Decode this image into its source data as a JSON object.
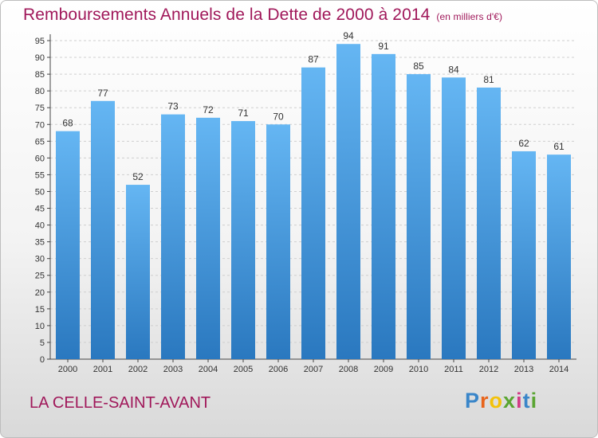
{
  "header": {
    "title": "Remboursements Annuels de la Dette de 2000 à 2014",
    "subtitle": "(en milliers d'€)"
  },
  "footer": {
    "place": "LA CELLE-SAINT-AVANT",
    "brand": "Proxiti"
  },
  "colors": {
    "accent": "#a0185a",
    "bar_top": "#65b6f3",
    "bar_bottom": "#2a78bf"
  },
  "chart_data": {
    "type": "bar",
    "title": "Remboursements Annuels de la Dette de 2000 à 2014",
    "xlabel": "",
    "ylabel": "",
    "categories": [
      "2000",
      "2001",
      "2002",
      "2003",
      "2004",
      "2005",
      "2006",
      "2007",
      "2008",
      "2009",
      "2010",
      "2011",
      "2012",
      "2013",
      "2014"
    ],
    "values": [
      68,
      77,
      52,
      73,
      72,
      71,
      70,
      87,
      94,
      91,
      85,
      84,
      81,
      62,
      61
    ],
    "ylim": [
      0,
      95
    ],
    "yticks": [
      0,
      5,
      10,
      15,
      20,
      25,
      30,
      35,
      40,
      45,
      50,
      55,
      60,
      65,
      70,
      75,
      80,
      85,
      90,
      95
    ],
    "grid": true,
    "data_labels": true
  }
}
